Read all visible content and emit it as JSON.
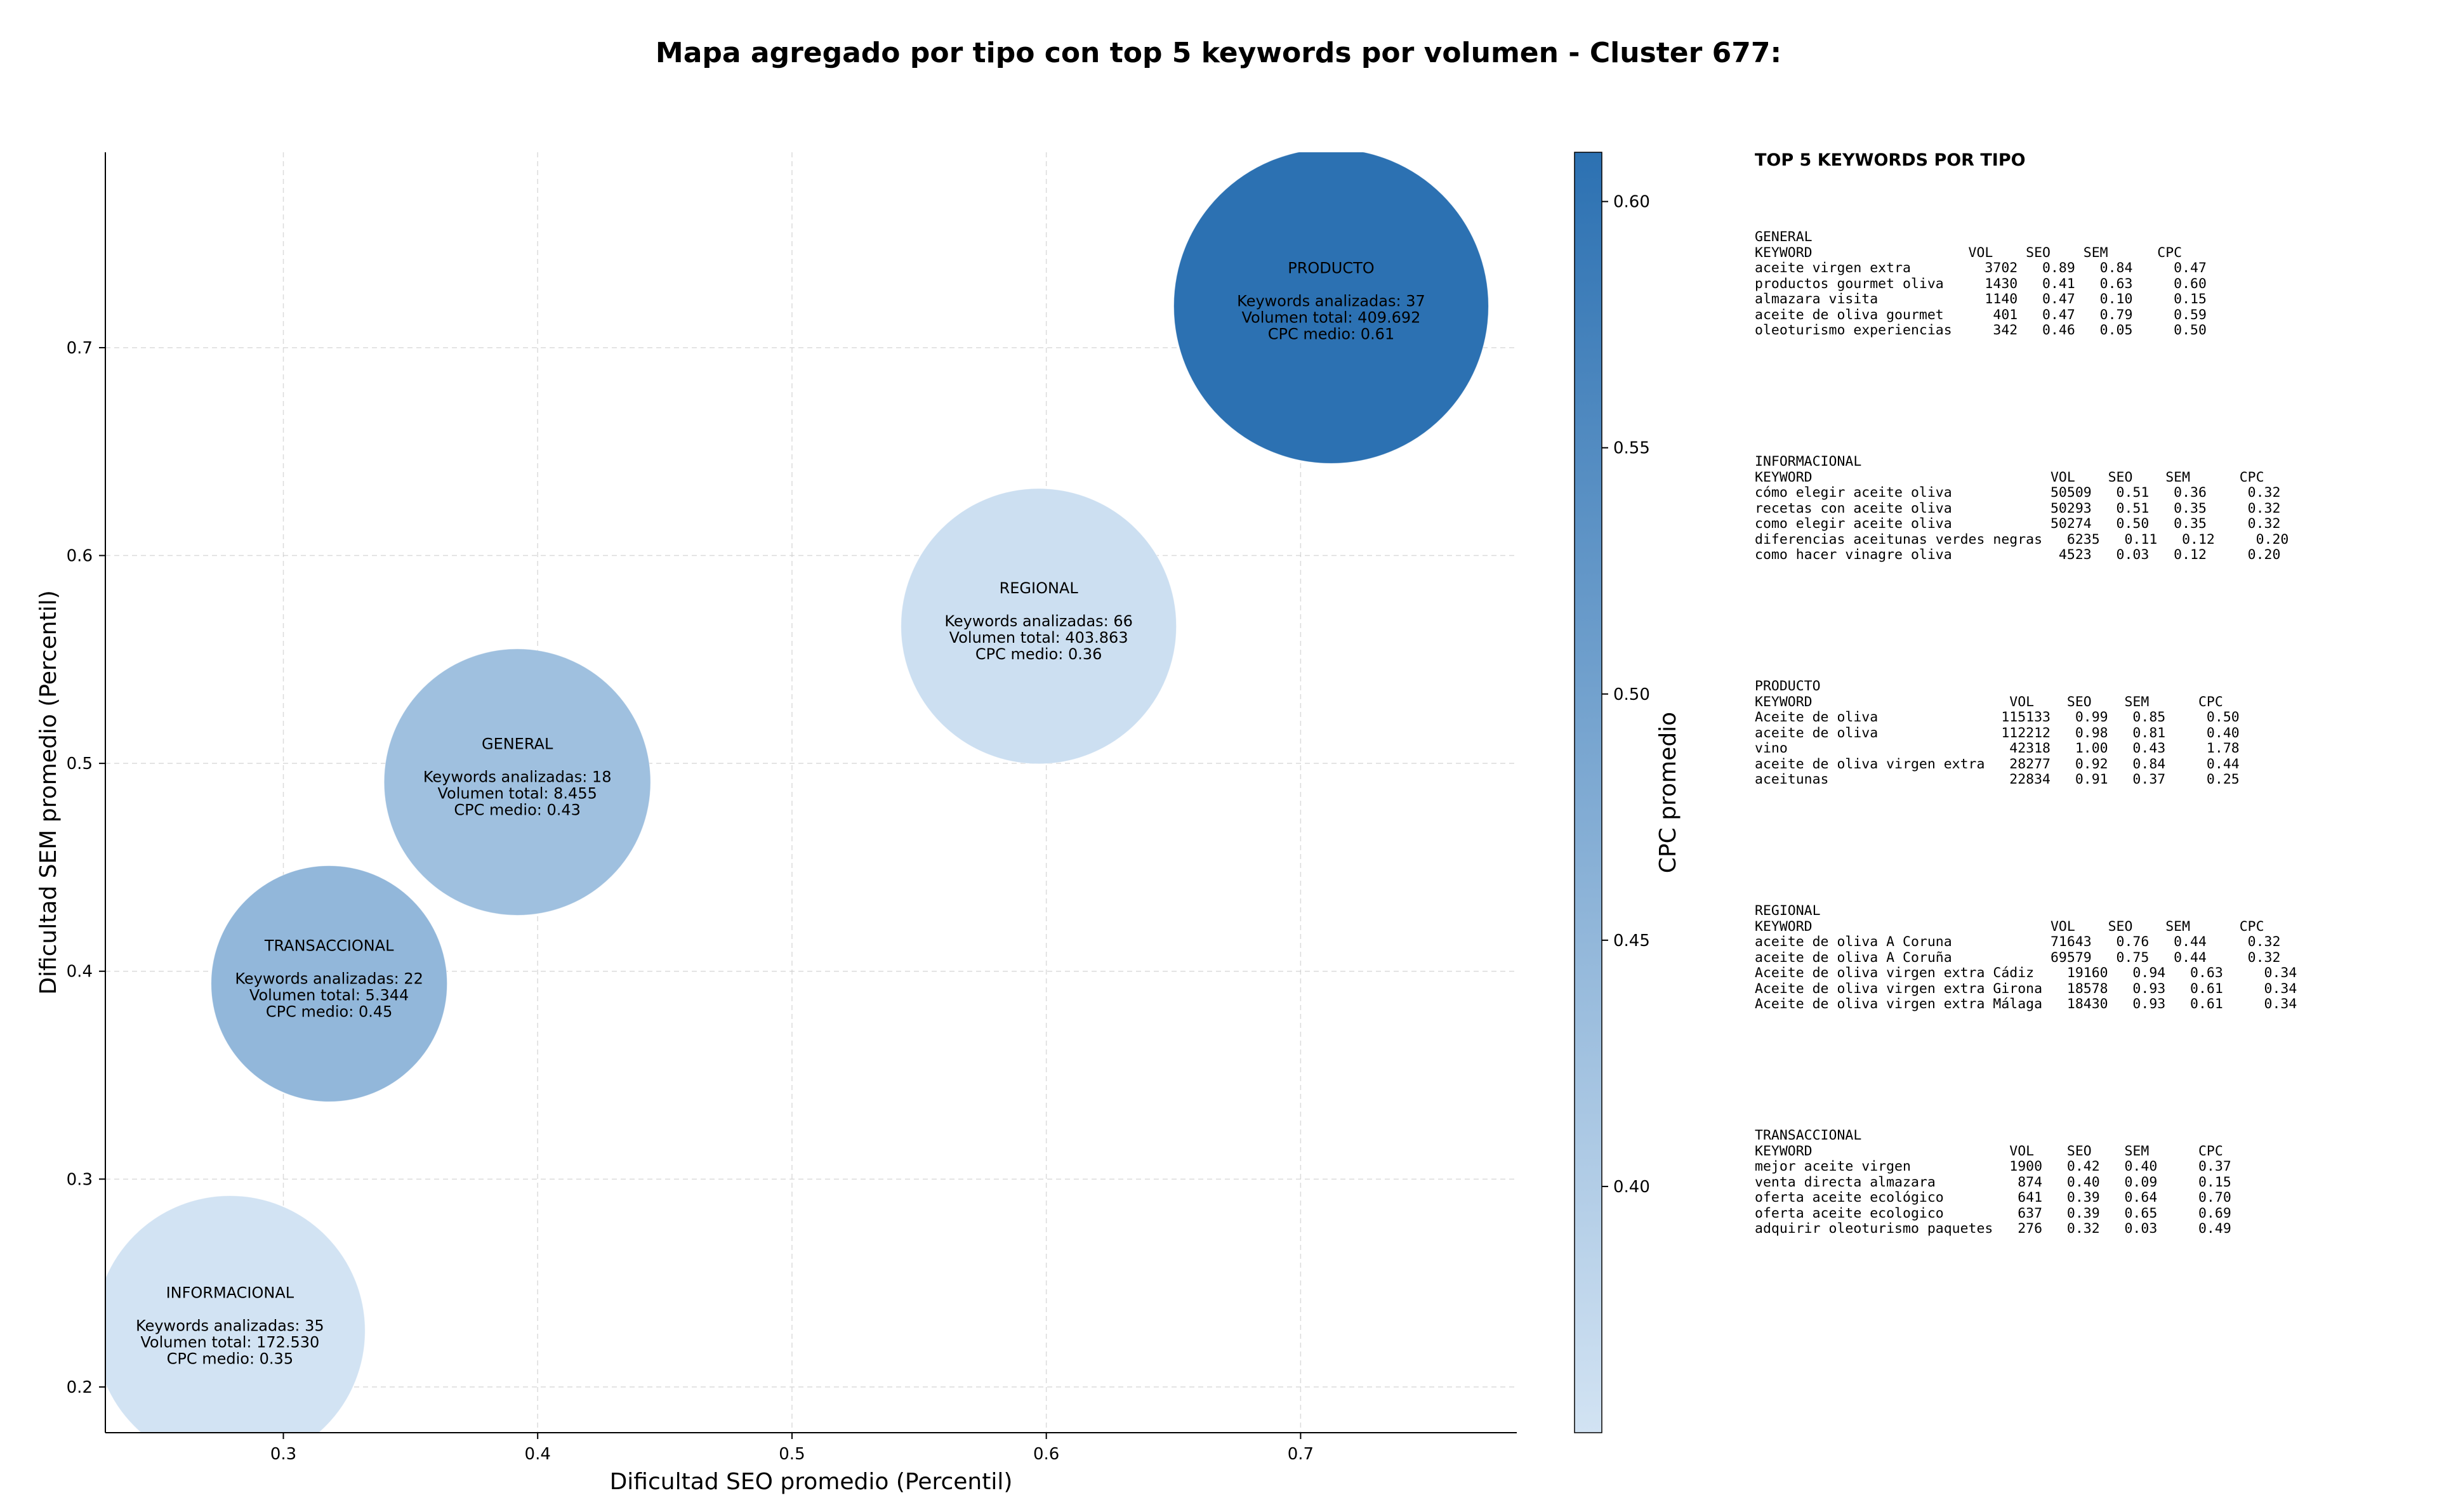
{
  "title": "Mapa agregado por tipo con top 5 keywords por volumen - Cluster 677:",
  "chart_data": {
    "type": "scatter",
    "title": "Mapa agregado por tipo con top 5 keywords por volumen - Cluster 677:",
    "xlabel": "Dificultad SEO promedio (Percentil)",
    "ylabel": "Dificultad SEM promedio (Percentil)",
    "xlim": [
      0.23,
      0.785
    ],
    "ylim": [
      0.178,
      0.794
    ],
    "xticks": [
      "0.3",
      "0.4",
      "0.5",
      "0.6",
      "0.7"
    ],
    "yticks": [
      "0.2",
      "0.3",
      "0.4",
      "0.5",
      "0.6",
      "0.7"
    ],
    "grid": true,
    "colorbar": {
      "label": "CPC promedio",
      "range": [
        0.35,
        0.61
      ],
      "ticks": [
        "0.40",
        "0.45",
        "0.50",
        "0.55",
        "0.60"
      ],
      "color_low": "#d2e3f3",
      "color_high": "#2c71b2"
    },
    "points": [
      {
        "type": "PRODUCTO",
        "x": 0.712,
        "y": 0.72,
        "keywords": 37,
        "volume": "409.692",
        "cpc": 0.61,
        "line1": "Keywords analizadas: 37",
        "line2": "Volumen total: 409.692",
        "line3": "CPC medio: 0.61"
      },
      {
        "type": "REGIONAL",
        "x": 0.597,
        "y": 0.566,
        "keywords": 66,
        "volume": "403.863",
        "cpc": 0.36,
        "line1": "Keywords analizadas: 66",
        "line2": "Volumen total: 403.863",
        "line3": "CPC medio: 0.36"
      },
      {
        "type": "GENERAL",
        "x": 0.392,
        "y": 0.491,
        "keywords": 18,
        "volume": "8.455",
        "cpc": 0.43,
        "line1": "Keywords analizadas: 18",
        "line2": "Volumen total: 8.455",
        "line3": "CPC medio: 0.43"
      },
      {
        "type": "TRANSACCIONAL",
        "x": 0.318,
        "y": 0.394,
        "keywords": 22,
        "volume": "5.344",
        "cpc": 0.45,
        "line1": "Keywords analizadas: 22",
        "line2": "Volumen total: 5.344",
        "line3": "CPC medio: 0.45"
      },
      {
        "type": "INFORMACIONAL",
        "x": 0.279,
        "y": 0.227,
        "keywords": 35,
        "volume": "172.530",
        "cpc": 0.35,
        "line1": "Keywords analizadas: 35",
        "line2": "Volumen total: 172.530",
        "line3": "CPC medio: 0.35"
      }
    ]
  },
  "panel": {
    "title": "TOP 5 KEYWORDS POR TIPO",
    "blocks": [
      {
        "type": "GENERAL",
        "header": "KEYWORD                   VOL    SEO    SEM      CPC",
        "rows": [
          "aceite virgen extra         3702   0.89   0.84     0.47",
          "productos gourmet oliva     1430   0.41   0.63     0.60",
          "almazara visita             1140   0.47   0.10     0.15",
          "aceite de oliva gourmet      401   0.47   0.79     0.59",
          "oleoturismo experiencias     342   0.46   0.05     0.50"
        ]
      },
      {
        "type": "INFORMACIONAL",
        "header": "KEYWORD                             VOL    SEO    SEM      CPC",
        "rows": [
          "cómo elegir aceite oliva            50509   0.51   0.36     0.32",
          "recetas con aceite oliva            50293   0.51   0.35     0.32",
          "como elegir aceite oliva            50274   0.50   0.35     0.32",
          "diferencias aceitunas verdes negras   6235   0.11   0.12     0.20",
          "como hacer vinagre oliva             4523   0.03   0.12     0.20"
        ]
      },
      {
        "type": "PRODUCTO",
        "header": "KEYWORD                        VOL    SEO    SEM      CPC",
        "rows": [
          "Aceite de oliva               115133   0.99   0.85     0.50",
          "aceite de oliva               112212   0.98   0.81     0.40",
          "vino                           42318   1.00   0.43     1.78",
          "aceite de oliva virgen extra   28277   0.92   0.84     0.44",
          "aceitunas                      22834   0.91   0.37     0.25"
        ]
      },
      {
        "type": "REGIONAL",
        "header": "KEYWORD                             VOL    SEO    SEM      CPC",
        "rows": [
          "aceite de oliva A Coruna            71643   0.76   0.44     0.32",
          "aceite de oliva A Coruña            69579   0.75   0.44     0.32",
          "Aceite de oliva virgen extra Cádiz    19160   0.94   0.63     0.34",
          "Aceite de oliva virgen extra Girona   18578   0.93   0.61     0.34",
          "Aceite de oliva virgen extra Málaga   18430   0.93   0.61     0.34"
        ]
      },
      {
        "type": "TRANSACCIONAL",
        "header": "KEYWORD                        VOL    SEO    SEM      CPC",
        "rows": [
          "mejor aceite virgen            1900   0.42   0.40     0.37",
          "venta directa almazara          874   0.40   0.09     0.15",
          "oferta aceite ecológico         641   0.39   0.64     0.70",
          "oferta aceite ecologico         637   0.39   0.65     0.69",
          "adquirir oleoturismo paquetes   276   0.32   0.03     0.49"
        ]
      }
    ]
  }
}
